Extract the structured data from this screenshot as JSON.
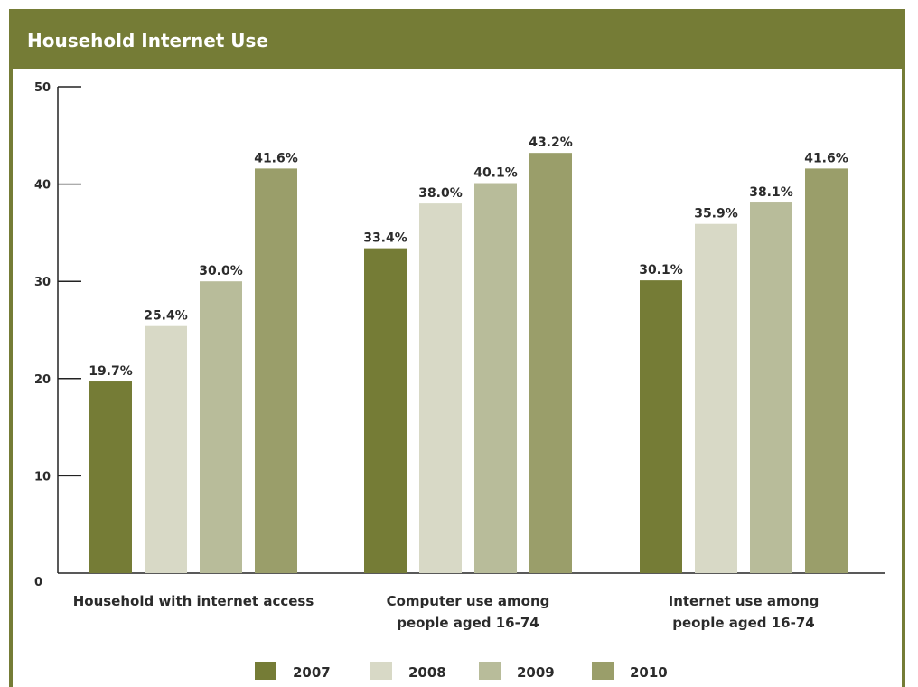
{
  "header": {
    "title": "Household Internet Use"
  },
  "colors": {
    "header_bg": "#757c36",
    "frame": "#757c36",
    "axis": "#222222"
  },
  "chart_data": {
    "type": "bar",
    "title": "Household Internet Use",
    "xlabel": "",
    "ylabel": "",
    "ylim": [
      0,
      50
    ],
    "yticks": [
      0,
      10,
      20,
      30,
      40,
      50
    ],
    "categories": [
      [
        "Household with internet access"
      ],
      [
        "Computer use among",
        "people aged 16-74"
      ],
      [
        "Internet use among",
        "people aged 16-74"
      ]
    ],
    "series": [
      {
        "name": "2007",
        "color": "#757c36",
        "values": [
          19.7,
          33.4,
          30.1
        ],
        "labels": [
          "19.7%",
          "33.4%",
          "30.1%"
        ]
      },
      {
        "name": "2008",
        "color": "#d8d9c6",
        "values": [
          25.4,
          38.0,
          35.9
        ],
        "labels": [
          "25.4%",
          "38.0%",
          "35.9%"
        ]
      },
      {
        "name": "2009",
        "color": "#b8bc9a",
        "values": [
          30.0,
          40.1,
          38.1
        ],
        "labels": [
          "30.0%",
          "40.1%",
          "38.1%"
        ]
      },
      {
        "name": "2010",
        "color": "#9a9e6a",
        "values": [
          41.6,
          43.2,
          41.6
        ],
        "labels": [
          "41.6%",
          "43.2%",
          "41.6%"
        ]
      }
    ],
    "grid": false,
    "legend": "bottom"
  }
}
